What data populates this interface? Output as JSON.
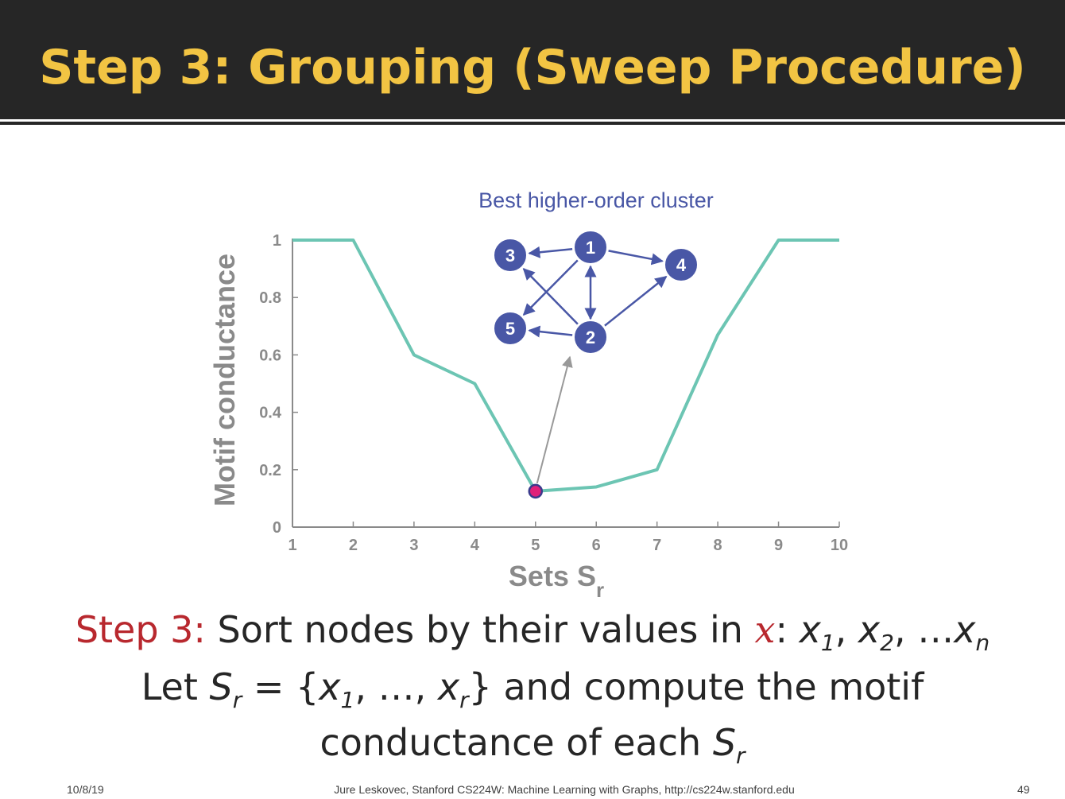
{
  "slide": {
    "title": "Step 3: Grouping (Sweep Procedure)",
    "body": {
      "line1": {
        "step_label": "Step 3:",
        "text_before_x": " Sort nodes by their values in ",
        "x_symbol": "x",
        "after_colon": ": ",
        "x1_base": "x",
        "x1_sub": "1",
        "sep1": ", ",
        "x2_base": "x",
        "x2_sub": "2",
        "sep2": ", …",
        "xn_base": "x",
        "xn_sub": "n"
      },
      "line2": {
        "let_text": "Let ",
        "s_base": "S",
        "s_sub": "r",
        "eq_text": " = {",
        "x1_base": "x",
        "x1_sub": "1",
        "mid_text": ", …, ",
        "xr_base": "x",
        "xr_sub": "r",
        "end_text": "} and compute the motif"
      },
      "line3": {
        "text": "conductance of each ",
        "s_base": "S",
        "s_sub": "r"
      }
    },
    "footer": {
      "date": "10/8/19",
      "credit": "Jure Leskovec, Stanford CS224W: Machine Learning with Graphs, http://cs224w.stanford.edu",
      "page": "49"
    }
  },
  "colors": {
    "title": "#f2c443",
    "title_bar": "#262626",
    "line": "#6cc5b3",
    "node": "#4957a6",
    "highlight_point": "#e0217a",
    "accent_red": "#b8282e",
    "axis": "#8a8a8a"
  },
  "chart_data": {
    "type": "line",
    "xlabel": "Sets S",
    "xlabel_sub": "r",
    "ylabel": "Motif conductance",
    "xlim": [
      1,
      10
    ],
    "ylim": [
      0,
      1
    ],
    "x_ticks": [
      "1",
      "2",
      "3",
      "4",
      "5",
      "6",
      "7",
      "8",
      "9",
      "10"
    ],
    "y_ticks": [
      "0",
      "0.2",
      "0.4",
      "0.6",
      "0.8",
      "1"
    ],
    "grid": false,
    "series": [
      {
        "x": [
          1,
          2,
          3,
          4,
          5,
          6,
          7,
          8,
          9,
          10
        ],
        "values": [
          1.0,
          1.0,
          0.6,
          0.5,
          0.125,
          0.14,
          0.2,
          0.67,
          1.0,
          1.0
        ]
      }
    ],
    "highlight": {
      "x": 5,
      "y": 0.125
    },
    "inset": {
      "title": "Best higher-order cluster",
      "nodes": [
        "1",
        "2",
        "3",
        "4",
        "5"
      ],
      "edges": [
        [
          "1",
          "3"
        ],
        [
          "1",
          "4"
        ],
        [
          "1",
          "5"
        ],
        [
          "2",
          "1"
        ],
        [
          "1",
          "2"
        ],
        [
          "2",
          "3"
        ],
        [
          "2",
          "4"
        ],
        [
          "2",
          "5"
        ]
      ]
    }
  }
}
